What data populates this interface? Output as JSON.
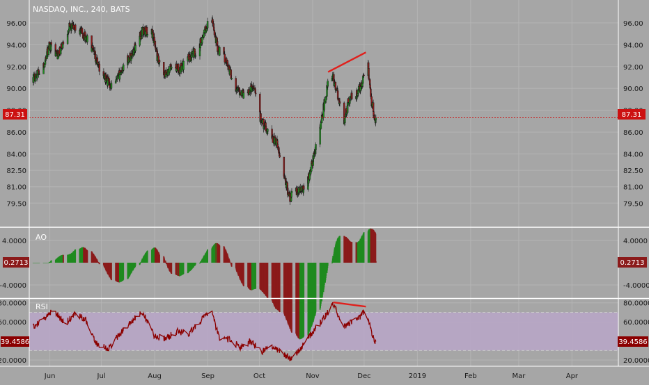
{
  "chart_data": {
    "type": "candlestick",
    "title": "NASDAQ, INC., 240, BATS",
    "colors": {
      "background": "#a6a6a6",
      "grid": "#b4b4b4",
      "up": "#1f8a1f",
      "down": "#8b1a1a",
      "drawing": "#e0201c",
      "rsi_line": "#8b0000",
      "rsi_band": "#b8a6c8",
      "price_line": "#cc1111",
      "text": "#1a1a1a"
    },
    "x_ticks": [
      "Jun",
      "Jul",
      "Aug",
      "Sep",
      "Oct",
      "Nov",
      "Dec",
      "2019",
      "Feb",
      "Mar",
      "Apr"
    ],
    "price": {
      "ylim": [
        78.5,
        97.2
      ],
      "y_ticks": [
        "96.00",
        "94.00",
        "92.00",
        "90.00",
        "88.00",
        "86.00",
        "84.00",
        "82.50",
        "81.00",
        "79.50"
      ],
      "last_value": "87.31",
      "last": 87.31,
      "anchors": [
        [
          "2018-05-23",
          91.0
        ],
        [
          "2018-05-28",
          92.0
        ],
        [
          "2018-06-01",
          94.0
        ],
        [
          "2018-06-06",
          93.0
        ],
        [
          "2018-06-12",
          95.6
        ],
        [
          "2018-06-18",
          95.4
        ],
        [
          "2018-06-24",
          94.2
        ],
        [
          "2018-06-28",
          92.5
        ],
        [
          "2018-07-03",
          91.0
        ],
        [
          "2018-07-08",
          90.0
        ],
        [
          "2018-07-13",
          91.8
        ],
        [
          "2018-07-19",
          93.2
        ],
        [
          "2018-07-25",
          95.3
        ],
        [
          "2018-07-31",
          95.0
        ],
        [
          "2018-08-03",
          92.5
        ],
        [
          "2018-08-06",
          91.0
        ],
        [
          "2018-08-11",
          92.0
        ],
        [
          "2018-08-16",
          91.8
        ],
        [
          "2018-08-21",
          92.8
        ],
        [
          "2018-08-26",
          93.5
        ],
        [
          "2018-08-31",
          95.5
        ],
        [
          "2018-09-03",
          96.5
        ],
        [
          "2018-09-07",
          93.5
        ],
        [
          "2018-09-12",
          92.5
        ],
        [
          "2018-09-17",
          90.0
        ],
        [
          "2018-09-22",
          89.5
        ],
        [
          "2018-09-28",
          90.3
        ],
        [
          "2018-10-01",
          87.5
        ],
        [
          "2018-10-06",
          86.0
        ],
        [
          "2018-10-11",
          85.0
        ],
        [
          "2018-10-15",
          82.5
        ],
        [
          "2018-10-18",
          80.0
        ],
        [
          "2018-10-23",
          80.5
        ],
        [
          "2018-10-28",
          80.8
        ],
        [
          "2018-11-02",
          84.0
        ],
        [
          "2018-11-06",
          87.0
        ],
        [
          "2018-11-10",
          90.5
        ],
        [
          "2018-11-13",
          91.0
        ],
        [
          "2018-11-16",
          89.0
        ],
        [
          "2018-11-19",
          86.5
        ],
        [
          "2018-11-22",
          89.0
        ],
        [
          "2018-11-27",
          89.5
        ],
        [
          "2018-11-30",
          90.5
        ],
        [
          "2018-12-03",
          92.5
        ],
        [
          "2018-12-05",
          89.0
        ],
        [
          "2018-12-07",
          87.31
        ]
      ]
    },
    "ao": {
      "label": "AO",
      "ylim": [
        -6.0,
        6.0
      ],
      "y_ticks": [
        "4.0000",
        "-4.0000"
      ],
      "last_value": "0.2713",
      "last": 0.2713
    },
    "rsi": {
      "label": "RSI",
      "ylim": [
        15.0,
        82.0
      ],
      "y_ticks": [
        "80.0000",
        "60.0000",
        "20.0000"
      ],
      "band": [
        30,
        70
      ],
      "last_value": "39.4586",
      "last": 39.4586,
      "anchors": [
        [
          "2018-05-23",
          55
        ],
        [
          "2018-05-28",
          62
        ],
        [
          "2018-06-03",
          72
        ],
        [
          "2018-06-10",
          58
        ],
        [
          "2018-06-16",
          70
        ],
        [
          "2018-06-22",
          62
        ],
        [
          "2018-06-28",
          38
        ],
        [
          "2018-07-05",
          32
        ],
        [
          "2018-07-12",
          48
        ],
        [
          "2018-07-18",
          60
        ],
        [
          "2018-07-25",
          70
        ],
        [
          "2018-08-01",
          45
        ],
        [
          "2018-08-07",
          42
        ],
        [
          "2018-08-14",
          50
        ],
        [
          "2018-08-21",
          48
        ],
        [
          "2018-08-28",
          62
        ],
        [
          "2018-09-03",
          72
        ],
        [
          "2018-09-08",
          40
        ],
        [
          "2018-09-14",
          42
        ],
        [
          "2018-09-20",
          33
        ],
        [
          "2018-09-26",
          40
        ],
        [
          "2018-10-02",
          28
        ],
        [
          "2018-10-08",
          35
        ],
        [
          "2018-10-14",
          28
        ],
        [
          "2018-10-19",
          22
        ],
        [
          "2018-10-24",
          30
        ],
        [
          "2018-10-30",
          45
        ],
        [
          "2018-11-05",
          58
        ],
        [
          "2018-11-10",
          70
        ],
        [
          "2018-11-13",
          80
        ],
        [
          "2018-11-18",
          55
        ],
        [
          "2018-11-22",
          58
        ],
        [
          "2018-11-27",
          62
        ],
        [
          "2018-12-02",
          74
        ],
        [
          "2018-12-05",
          50
        ],
        [
          "2018-12-07",
          39.46
        ]
      ]
    },
    "drawings": [
      {
        "pane": "price",
        "from": [
          "2018-11-10",
          91.5
        ],
        "to": [
          "2018-12-02",
          93.3
        ]
      },
      {
        "pane": "rsi",
        "from": [
          "2018-11-13",
          80.5
        ],
        "to": [
          "2018-12-02",
          76.0
        ]
      }
    ]
  }
}
